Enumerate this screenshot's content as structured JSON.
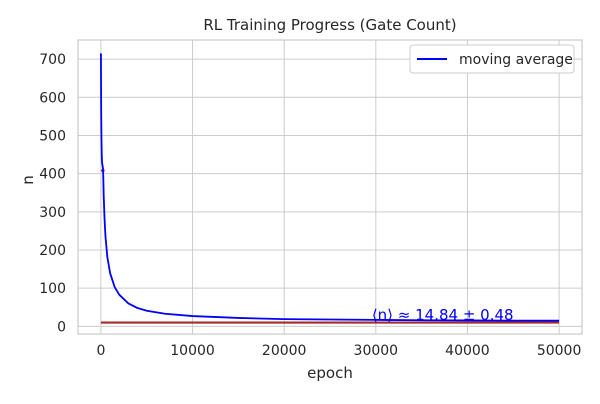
{
  "chart_data": {
    "type": "line",
    "title": "RL Training Progress (Gate Count)",
    "xlabel": "epoch",
    "ylabel": "n",
    "xlim": [
      -2500,
      52500
    ],
    "ylim": [
      -20,
      750
    ],
    "xticks": [
      0,
      10000,
      20000,
      30000,
      40000,
      50000
    ],
    "xtick_labels": [
      "0",
      "10000",
      "20000",
      "30000",
      "40000",
      "50000"
    ],
    "yticks": [
      0,
      100,
      200,
      300,
      400,
      500,
      600,
      700
    ],
    "ytick_labels": [
      "0",
      "100",
      "200",
      "300",
      "400",
      "500",
      "600",
      "700"
    ],
    "grid": true,
    "legend_position": "top-right",
    "colors": {
      "moving_average": "#0000ff",
      "baseline": "#a52a2a",
      "annotation": "#0000ff",
      "grid": "#cccccc",
      "spine": "#cccccc"
    },
    "series": [
      {
        "name": "moving average",
        "x": [
          0,
          30,
          60,
          90,
          120,
          150,
          180,
          200,
          230,
          260,
          300,
          400,
          500,
          700,
          1000,
          1500,
          2000,
          3000,
          4000,
          5000,
          7000,
          10000,
          15000,
          20000,
          25000,
          30000,
          35000,
          40000,
          45000,
          50000
        ],
        "y": [
          715,
          560,
          490,
          450,
          432,
          425,
          421,
          418,
          412,
          390,
          345,
          280,
          235,
          182,
          140,
          103,
          83,
          60,
          48,
          41,
          33,
          27,
          22,
          19,
          18,
          17,
          16,
          15.5,
          15,
          14.8
        ]
      },
      {
        "x": [
          0,
          50000
        ],
        "y": [
          10,
          10
        ]
      },
      {
        "x": [
          0,
          400
        ],
        "y": [
          408,
          408
        ]
      }
    ],
    "annotation": {
      "text": "⟨n⟩ ≈ 14.84 ± 0.48",
      "x": 30000,
      "y": 40
    }
  }
}
